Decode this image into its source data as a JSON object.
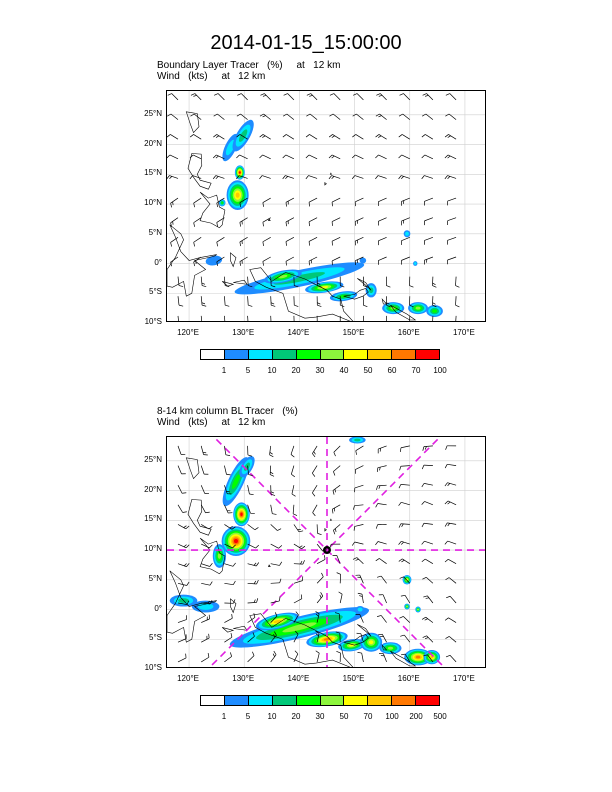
{
  "title": "2014-01-15_15:00:00",
  "panels": [
    {
      "title_line1": "Boundary Layer Tracer   (%)     at   12 km",
      "title_line2": "Wind   (kts)     at   12 km",
      "lat_ticks": [
        "25°N",
        "20°N",
        "15°N",
        "10°N",
        "5°N",
        "0°",
        "5°S",
        "10°S"
      ],
      "lon_ticks": [
        "120°E",
        "130°E",
        "140°E",
        "150°E",
        "160°E",
        "170°E"
      ],
      "colorbar_labels": [
        "1",
        "5",
        "10",
        "20",
        "30",
        "40",
        "50",
        "60",
        "70",
        "100"
      ],
      "colorbar_colors": [
        "#ffffff",
        "#1e8cff",
        "#00e6ff",
        "#00c878",
        "#00ff00",
        "#8cf53c",
        "#ffff00",
        "#ffc800",
        "#ff7800",
        "#ff0000"
      ]
    },
    {
      "title_line1": "8-14 km column BL Tracer   (%)",
      "title_line2": "Wind   (kts)     at   12 km",
      "lat_ticks": [
        "25°N",
        "20°N",
        "15°N",
        "10°N",
        "5°N",
        "0°",
        "5°S",
        "10°S"
      ],
      "lon_ticks": [
        "120°E",
        "130°E",
        "140°E",
        "150°E",
        "160°E",
        "170°E"
      ],
      "colorbar_labels": [
        "1",
        "5",
        "10",
        "20",
        "30",
        "50",
        "70",
        "100",
        "200",
        "500"
      ],
      "colorbar_colors": [
        "#ffffff",
        "#1e8cff",
        "#00e6ff",
        "#00c878",
        "#00ff00",
        "#8cf53c",
        "#ffff00",
        "#ffc800",
        "#ff7800",
        "#ff0000"
      ]
    }
  ],
  "map_extent": {
    "lon_min": 116,
    "lon_max": 174,
    "lat_min": -10,
    "lat_max": 29
  },
  "center_marker": {
    "lon": 145,
    "lat": 10
  }
}
